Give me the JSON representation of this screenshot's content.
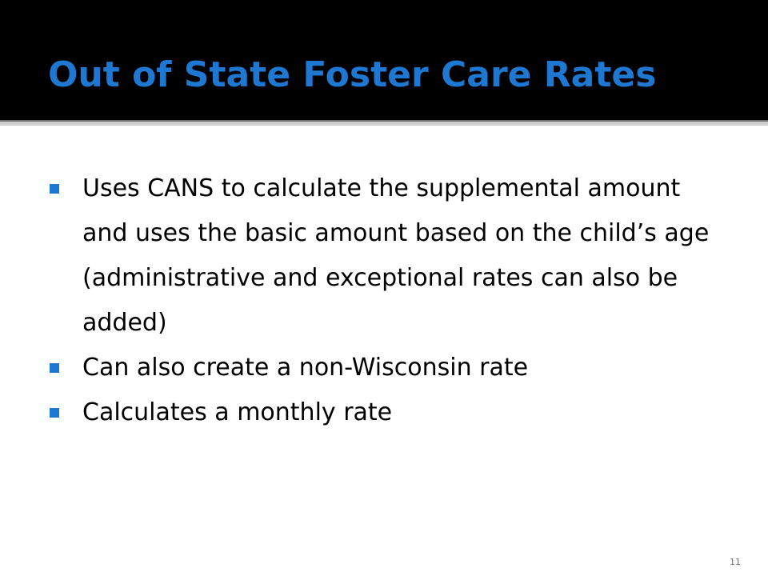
{
  "slide": {
    "title": "Out of State Foster Care Rates",
    "bullets": [
      {
        "text": "Uses CANS to calculate the supplemental amount and uses the basic amount based on the child’s age (administrative and exceptional rates can also be added)"
      },
      {
        "text": "Can also create a non-Wisconsin rate"
      },
      {
        "text": "Calculates a monthly rate"
      }
    ],
    "page_number": "11"
  },
  "colors": {
    "title_band": "#000000",
    "accent": "#1E78D2",
    "text": "#000000",
    "background": "#FFFFFF"
  },
  "icons": {
    "bullet_marker": "square-bullet-icon"
  }
}
